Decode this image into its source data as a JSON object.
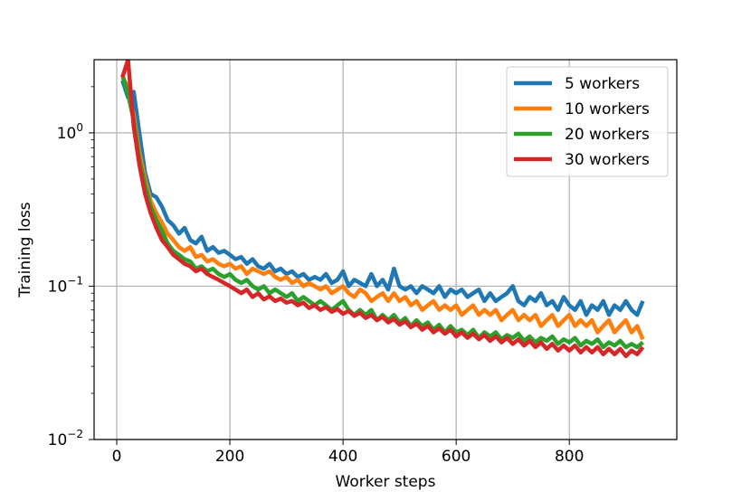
{
  "chart_data": {
    "type": "line",
    "xlabel": "Worker steps",
    "ylabel": "Training loss",
    "xlim": [
      -40,
      990
    ],
    "ylim": [
      0.01,
      3.0
    ],
    "yscale": "log",
    "grid": true,
    "legend_position": "top-right",
    "xticks": [
      0,
      200,
      400,
      600,
      800
    ],
    "xtick_labels": [
      "0",
      "200",
      "400",
      "600",
      "800"
    ],
    "yticks": [
      0.01,
      0.1,
      1.0
    ],
    "ytick_labels": [
      {
        "base": "10",
        "exp": "−2"
      },
      {
        "base": "10",
        "exp": "−1"
      },
      {
        "base": "10",
        "exp": "0"
      }
    ],
    "series": [
      {
        "name": "5 workers",
        "color": "#1f77b4",
        "x": [
          10,
          20,
          30,
          40,
          50,
          60,
          70,
          80,
          90,
          100,
          110,
          120,
          130,
          140,
          150,
          160,
          170,
          180,
          190,
          200,
          210,
          220,
          230,
          240,
          250,
          260,
          270,
          280,
          290,
          300,
          310,
          320,
          330,
          340,
          350,
          360,
          370,
          380,
          390,
          400,
          410,
          420,
          430,
          440,
          450,
          460,
          470,
          480,
          490,
          500,
          510,
          520,
          530,
          540,
          550,
          560,
          570,
          580,
          590,
          600,
          610,
          620,
          630,
          640,
          650,
          660,
          670,
          680,
          690,
          700,
          710,
          720,
          730,
          740,
          750,
          760,
          770,
          780,
          790,
          800,
          810,
          820,
          830,
          840,
          850,
          860,
          870,
          880,
          890,
          900,
          910,
          920,
          930
        ],
        "y": [
          2.2,
          1.7,
          1.85,
          1.0,
          0.55,
          0.4,
          0.38,
          0.33,
          0.27,
          0.25,
          0.22,
          0.24,
          0.2,
          0.19,
          0.21,
          0.17,
          0.18,
          0.165,
          0.17,
          0.16,
          0.15,
          0.155,
          0.14,
          0.15,
          0.135,
          0.13,
          0.14,
          0.125,
          0.13,
          0.12,
          0.125,
          0.115,
          0.12,
          0.11,
          0.115,
          0.11,
          0.12,
          0.105,
          0.11,
          0.125,
          0.1,
          0.11,
          0.105,
          0.1,
          0.12,
          0.1,
          0.11,
          0.095,
          0.13,
          0.1,
          0.095,
          0.1,
          0.09,
          0.1,
          0.095,
          0.09,
          0.1,
          0.085,
          0.095,
          0.09,
          0.095,
          0.085,
          0.09,
          0.095,
          0.08,
          0.09,
          0.08,
          0.085,
          0.09,
          0.1,
          0.08,
          0.075,
          0.085,
          0.08,
          0.09,
          0.075,
          0.08,
          0.07,
          0.085,
          0.075,
          0.07,
          0.08,
          0.065,
          0.075,
          0.07,
          0.08,
          0.065,
          0.075,
          0.07,
          0.08,
          0.07,
          0.065,
          0.08
        ]
      },
      {
        "name": "10 workers",
        "color": "#ff7f0e",
        "x": [
          10,
          20,
          30,
          40,
          50,
          60,
          70,
          80,
          90,
          100,
          110,
          120,
          130,
          140,
          150,
          160,
          170,
          180,
          190,
          200,
          210,
          220,
          230,
          240,
          250,
          260,
          270,
          280,
          290,
          300,
          310,
          320,
          330,
          340,
          350,
          360,
          370,
          380,
          390,
          400,
          410,
          420,
          430,
          440,
          450,
          460,
          470,
          480,
          490,
          500,
          510,
          520,
          530,
          540,
          550,
          560,
          570,
          580,
          590,
          600,
          610,
          620,
          630,
          640,
          650,
          660,
          670,
          680,
          690,
          700,
          710,
          720,
          730,
          740,
          750,
          760,
          770,
          780,
          790,
          800,
          810,
          820,
          830,
          840,
          850,
          860,
          870,
          880,
          890,
          900,
          910,
          920,
          930
        ],
        "y": [
          2.3,
          2.0,
          1.3,
          0.75,
          0.5,
          0.36,
          0.3,
          0.26,
          0.22,
          0.2,
          0.18,
          0.17,
          0.18,
          0.155,
          0.16,
          0.145,
          0.15,
          0.14,
          0.135,
          0.14,
          0.13,
          0.135,
          0.12,
          0.13,
          0.125,
          0.12,
          0.125,
          0.115,
          0.11,
          0.115,
          0.105,
          0.11,
          0.1,
          0.105,
          0.1,
          0.095,
          0.1,
          0.09,
          0.095,
          0.1,
          0.09,
          0.085,
          0.095,
          0.09,
          0.08,
          0.085,
          0.09,
          0.08,
          0.09,
          0.08,
          0.085,
          0.075,
          0.08,
          0.07,
          0.075,
          0.08,
          0.07,
          0.075,
          0.07,
          0.075,
          0.065,
          0.07,
          0.075,
          0.065,
          0.07,
          0.065,
          0.07,
          0.06,
          0.065,
          0.07,
          0.06,
          0.065,
          0.06,
          0.065,
          0.055,
          0.06,
          0.065,
          0.055,
          0.06,
          0.065,
          0.055,
          0.06,
          0.055,
          0.06,
          0.05,
          0.055,
          0.06,
          0.05,
          0.055,
          0.06,
          0.05,
          0.055,
          0.045
        ]
      },
      {
        "name": "20 workers",
        "color": "#2ca02c",
        "x": [
          10,
          20,
          30,
          40,
          50,
          60,
          70,
          80,
          90,
          100,
          110,
          120,
          130,
          140,
          150,
          160,
          170,
          180,
          190,
          200,
          210,
          220,
          230,
          240,
          250,
          260,
          270,
          280,
          290,
          300,
          310,
          320,
          330,
          340,
          350,
          360,
          370,
          380,
          390,
          400,
          410,
          420,
          430,
          440,
          450,
          460,
          470,
          480,
          490,
          500,
          510,
          520,
          530,
          540,
          550,
          560,
          570,
          580,
          590,
          600,
          610,
          620,
          630,
          640,
          650,
          660,
          670,
          680,
          690,
          700,
          710,
          720,
          730,
          740,
          750,
          760,
          770,
          780,
          790,
          800,
          810,
          820,
          830,
          840,
          850,
          860,
          870,
          880,
          890,
          900,
          910,
          920,
          930
        ],
        "y": [
          2.4,
          1.8,
          1.2,
          0.68,
          0.46,
          0.33,
          0.27,
          0.23,
          0.19,
          0.17,
          0.16,
          0.15,
          0.145,
          0.13,
          0.135,
          0.125,
          0.13,
          0.12,
          0.115,
          0.12,
          0.11,
          0.105,
          0.11,
          0.1,
          0.095,
          0.1,
          0.09,
          0.095,
          0.09,
          0.085,
          0.09,
          0.08,
          0.085,
          0.08,
          0.075,
          0.08,
          0.075,
          0.07,
          0.075,
          0.08,
          0.07,
          0.065,
          0.07,
          0.065,
          0.07,
          0.06,
          0.065,
          0.06,
          0.065,
          0.058,
          0.062,
          0.055,
          0.06,
          0.055,
          0.058,
          0.052,
          0.056,
          0.05,
          0.055,
          0.05,
          0.052,
          0.048,
          0.052,
          0.046,
          0.05,
          0.047,
          0.05,
          0.045,
          0.048,
          0.046,
          0.049,
          0.044,
          0.047,
          0.043,
          0.046,
          0.044,
          0.047,
          0.042,
          0.045,
          0.043,
          0.046,
          0.041,
          0.044,
          0.042,
          0.045,
          0.04,
          0.043,
          0.041,
          0.044,
          0.04,
          0.042,
          0.04,
          0.043
        ]
      },
      {
        "name": "30 workers",
        "color": "#d62728",
        "x": [
          10,
          20,
          30,
          40,
          50,
          60,
          70,
          80,
          90,
          100,
          110,
          120,
          130,
          140,
          150,
          160,
          170,
          180,
          190,
          200,
          210,
          220,
          230,
          240,
          250,
          260,
          270,
          280,
          290,
          300,
          310,
          320,
          330,
          340,
          350,
          360,
          370,
          380,
          390,
          400,
          410,
          420,
          430,
          440,
          450,
          460,
          470,
          480,
          490,
          500,
          510,
          520,
          530,
          540,
          550,
          560,
          570,
          580,
          590,
          600,
          610,
          620,
          630,
          640,
          650,
          660,
          670,
          680,
          690,
          700,
          710,
          720,
          730,
          740,
          750,
          760,
          770,
          780,
          790,
          800,
          810,
          820,
          830,
          840,
          850,
          860,
          870,
          880,
          890,
          900,
          910,
          920,
          930
        ],
        "y": [
          2.3,
          3.0,
          1.1,
          0.62,
          0.4,
          0.3,
          0.24,
          0.2,
          0.18,
          0.16,
          0.15,
          0.14,
          0.135,
          0.125,
          0.13,
          0.12,
          0.115,
          0.11,
          0.105,
          0.1,
          0.095,
          0.09,
          0.095,
          0.085,
          0.09,
          0.082,
          0.086,
          0.08,
          0.083,
          0.078,
          0.08,
          0.075,
          0.078,
          0.072,
          0.075,
          0.07,
          0.073,
          0.068,
          0.071,
          0.066,
          0.069,
          0.064,
          0.067,
          0.062,
          0.065,
          0.06,
          0.063,
          0.058,
          0.061,
          0.056,
          0.059,
          0.054,
          0.057,
          0.052,
          0.055,
          0.05,
          0.053,
          0.049,
          0.052,
          0.047,
          0.05,
          0.046,
          0.049,
          0.045,
          0.048,
          0.044,
          0.047,
          0.043,
          0.046,
          0.042,
          0.045,
          0.041,
          0.044,
          0.04,
          0.043,
          0.039,
          0.042,
          0.038,
          0.041,
          0.038,
          0.041,
          0.037,
          0.04,
          0.037,
          0.04,
          0.036,
          0.039,
          0.036,
          0.039,
          0.035,
          0.038,
          0.036,
          0.04
        ]
      }
    ]
  }
}
